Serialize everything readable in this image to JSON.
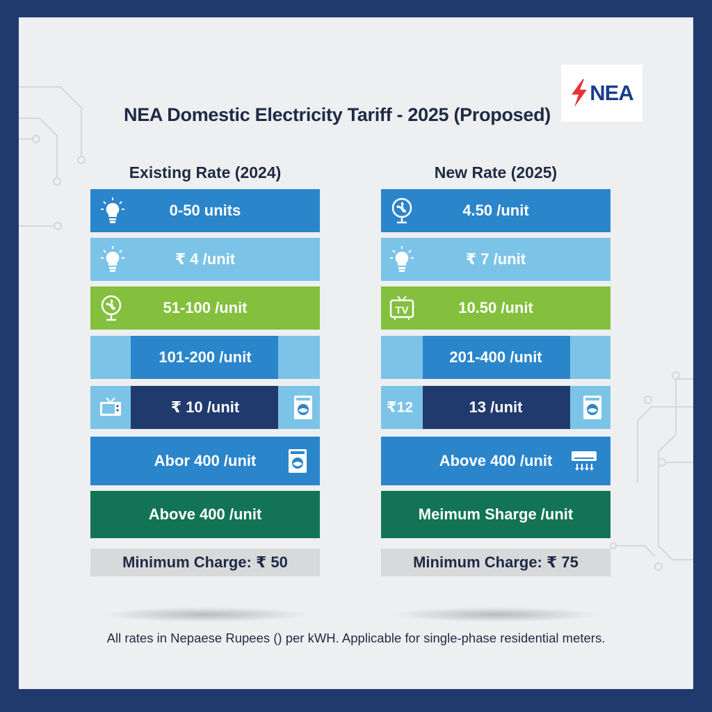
{
  "title": "NEA Domestic Electricity Tariff - 2025 (Proposed)",
  "logo": {
    "text": "NEA"
  },
  "colors": {
    "blue": "#2a85cb",
    "light_blue": "#7cc4e7",
    "green": "#84bf3d",
    "navy": "#213a6e",
    "dark_green": "#127454",
    "gray": "#d8d9db",
    "bolt_red": "#e8323a"
  },
  "existing": {
    "heading": "Existing Rate (2024)",
    "rows": [
      {
        "label": "0-50 units",
        "icon": "lightbulb-icon"
      },
      {
        "label": "₹ 4 /unit",
        "icon": "lightbulb-icon"
      },
      {
        "label": "51-100 /unit",
        "icon": "fan-icon"
      },
      {
        "label": "101-200 /unit"
      },
      {
        "label": "₹ 10 /unit",
        "icon_left": "tv-icon",
        "icon_right": "washing-machine-icon"
      },
      {
        "label": "Abor 400 /unit",
        "icon_right": "washing-machine-icon"
      },
      {
        "label": "Above 400 /unit"
      }
    ],
    "minimum": "Minimum Charge: ₹ 50"
  },
  "new": {
    "heading": "New Rate (2025)",
    "rows": [
      {
        "label": "4.50 /unit",
        "icon": "fan-icon"
      },
      {
        "label": "₹ 7 /unit",
        "icon": "lightbulb-icon"
      },
      {
        "label": "10.50 /unit",
        "icon": "tv-icon",
        "icon_text": "TV"
      },
      {
        "label": "201-400 /unit"
      },
      {
        "label": "13 /unit",
        "side_label": "₹12",
        "icon_right": "washing-machine-icon"
      },
      {
        "label": "Above 400 /unit",
        "icon_right": "air-conditioner-icon"
      },
      {
        "label": "Meimum Sharge /unit"
      }
    ],
    "minimum": "Minimum Charge: ₹ 75"
  },
  "footnote": "All rates in Nepaese Rupees () per kWH. Applicable for single-phase residential meters."
}
